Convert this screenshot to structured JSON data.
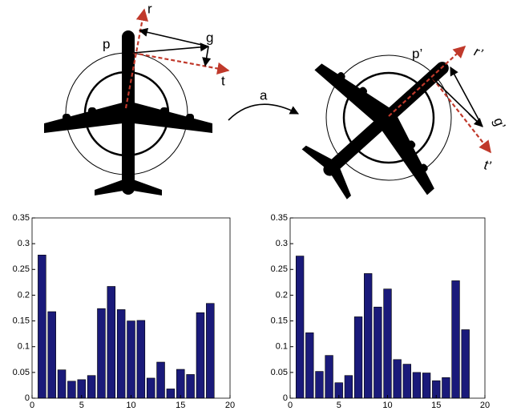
{
  "diagram": {
    "labels": [
      "p",
      "r",
      "g",
      "t",
      "a",
      "p’",
      "r’",
      "g’",
      "t’"
    ]
  },
  "chart_data": [
    {
      "type": "bar",
      "color": "#1a1a7a",
      "grid": false,
      "x": [
        1,
        2,
        3,
        4,
        5,
        6,
        7,
        8,
        9,
        10,
        11,
        12,
        13,
        14,
        15,
        16,
        17,
        18
      ],
      "values": [
        0.278,
        0.168,
        0.055,
        0.033,
        0.036,
        0.044,
        0.174,
        0.217,
        0.172,
        0.15,
        0.151,
        0.039,
        0.07,
        0.018,
        0.056,
        0.046,
        0.166,
        0.184
      ],
      "xlim": [
        0,
        20
      ],
      "xticks": [
        0,
        5,
        10,
        15,
        20
      ],
      "ylim": [
        0,
        0.35
      ],
      "yticks": [
        0,
        0.05,
        0.1,
        0.15,
        0.2,
        0.25,
        0.3,
        0.35
      ]
    },
    {
      "type": "bar",
      "color": "#1a1a7a",
      "grid": false,
      "x": [
        1,
        2,
        3,
        4,
        5,
        6,
        7,
        8,
        9,
        10,
        11,
        12,
        13,
        14,
        15,
        16,
        17,
        18
      ],
      "values": [
        0.276,
        0.127,
        0.052,
        0.083,
        0.03,
        0.044,
        0.158,
        0.242,
        0.177,
        0.212,
        0.075,
        0.066,
        0.05,
        0.049,
        0.034,
        0.04,
        0.228,
        0.133
      ],
      "xlim": [
        0,
        20
      ],
      "xticks": [
        0,
        5,
        10,
        15,
        20
      ],
      "ylim": [
        0,
        0.35
      ],
      "yticks": [
        0,
        0.05,
        0.1,
        0.15,
        0.2,
        0.25,
        0.3,
        0.35
      ]
    }
  ]
}
